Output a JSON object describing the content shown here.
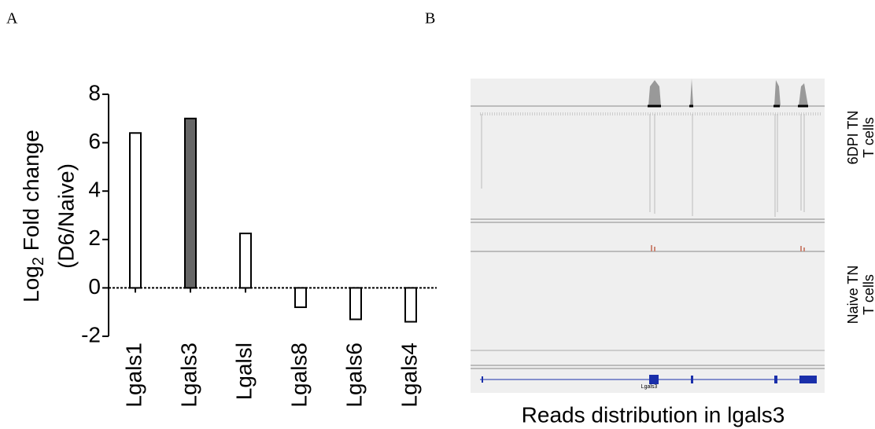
{
  "panel_labels": [
    "A",
    "B"
  ],
  "chart_data": {
    "type": "bar",
    "ylabel": {
      "text": "Log",
      "subscript": "2",
      "rest": " Fold change",
      "line2": "(D6/Naive)"
    },
    "categories": [
      "Lgals1",
      "Lgals3",
      "Lgalsl",
      "Lgals8",
      "Lgals6",
      "Lgals4"
    ],
    "values": [
      6.4,
      7.0,
      2.25,
      -0.8,
      -1.3,
      -1.4
    ],
    "colors": [
      "#ffffff",
      "#666666",
      "#ffffff",
      "#ffffff",
      "#ffffff",
      "#ffffff"
    ],
    "ylim": [
      -2,
      8
    ],
    "yticks": [
      -2,
      0,
      2,
      4,
      6,
      8
    ]
  },
  "browser": {
    "tracks": [
      [
        "6DPI TN",
        "T cells"
      ],
      [
        "Naive TN",
        "T cells"
      ]
    ],
    "gene": "Lgals3",
    "title": "Reads distribution in lgals3"
  }
}
